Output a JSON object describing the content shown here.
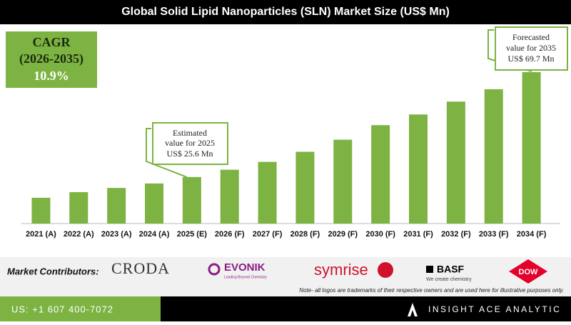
{
  "chart_data": {
    "type": "bar",
    "title": "Global Solid Lipid Nanoparticles (SLN) Market Size (US$ Mn)",
    "categories": [
      "2021 (A)",
      "2022 (A)",
      "2023 (A)",
      "2024 (A)",
      "2025 (E)",
      "2026 (F)",
      "2027 (F)",
      "2028 (F)",
      "2029 (F)",
      "2030 (F)",
      "2031 (F)",
      "2032 (F)",
      "2033 (F)",
      "2034 (F)"
    ],
    "values": [
      18.2,
      20.2,
      21.7,
      23.3,
      25.6,
      28.2,
      31.0,
      34.6,
      38.9,
      44.1,
      47.9,
      52.5,
      56.9,
      63.0
    ],
    "color": "#7cb342",
    "ylim": [
      9,
      63
    ],
    "cagr": {
      "title": "CAGR",
      "period": "(2026-2035)",
      "value": "10.9%"
    },
    "annotations": [
      {
        "lines": [
          "Estimated",
          "value for 2025",
          "US$ 25.6 Mn"
        ]
      },
      {
        "lines": [
          "Forecasted",
          "value for 2035",
          "US$ 69.7 Mn"
        ]
      }
    ]
  },
  "footer": {
    "contributors_label": "Market Contributors:",
    "contributors": [
      "CRODA",
      "EVONIK",
      "symrise",
      "BASF",
      "DOW"
    ],
    "evonik_tagline": "Leading Beyond Chemistry",
    "basf_tagline": "We create chemistry",
    "note": "Note- all logos are trademarks of their respective owners and are used here for illustrative purposes only.",
    "phone": "US: +1 607 400-7072",
    "brand": "INSIGHT ACE ANALYTIC"
  }
}
